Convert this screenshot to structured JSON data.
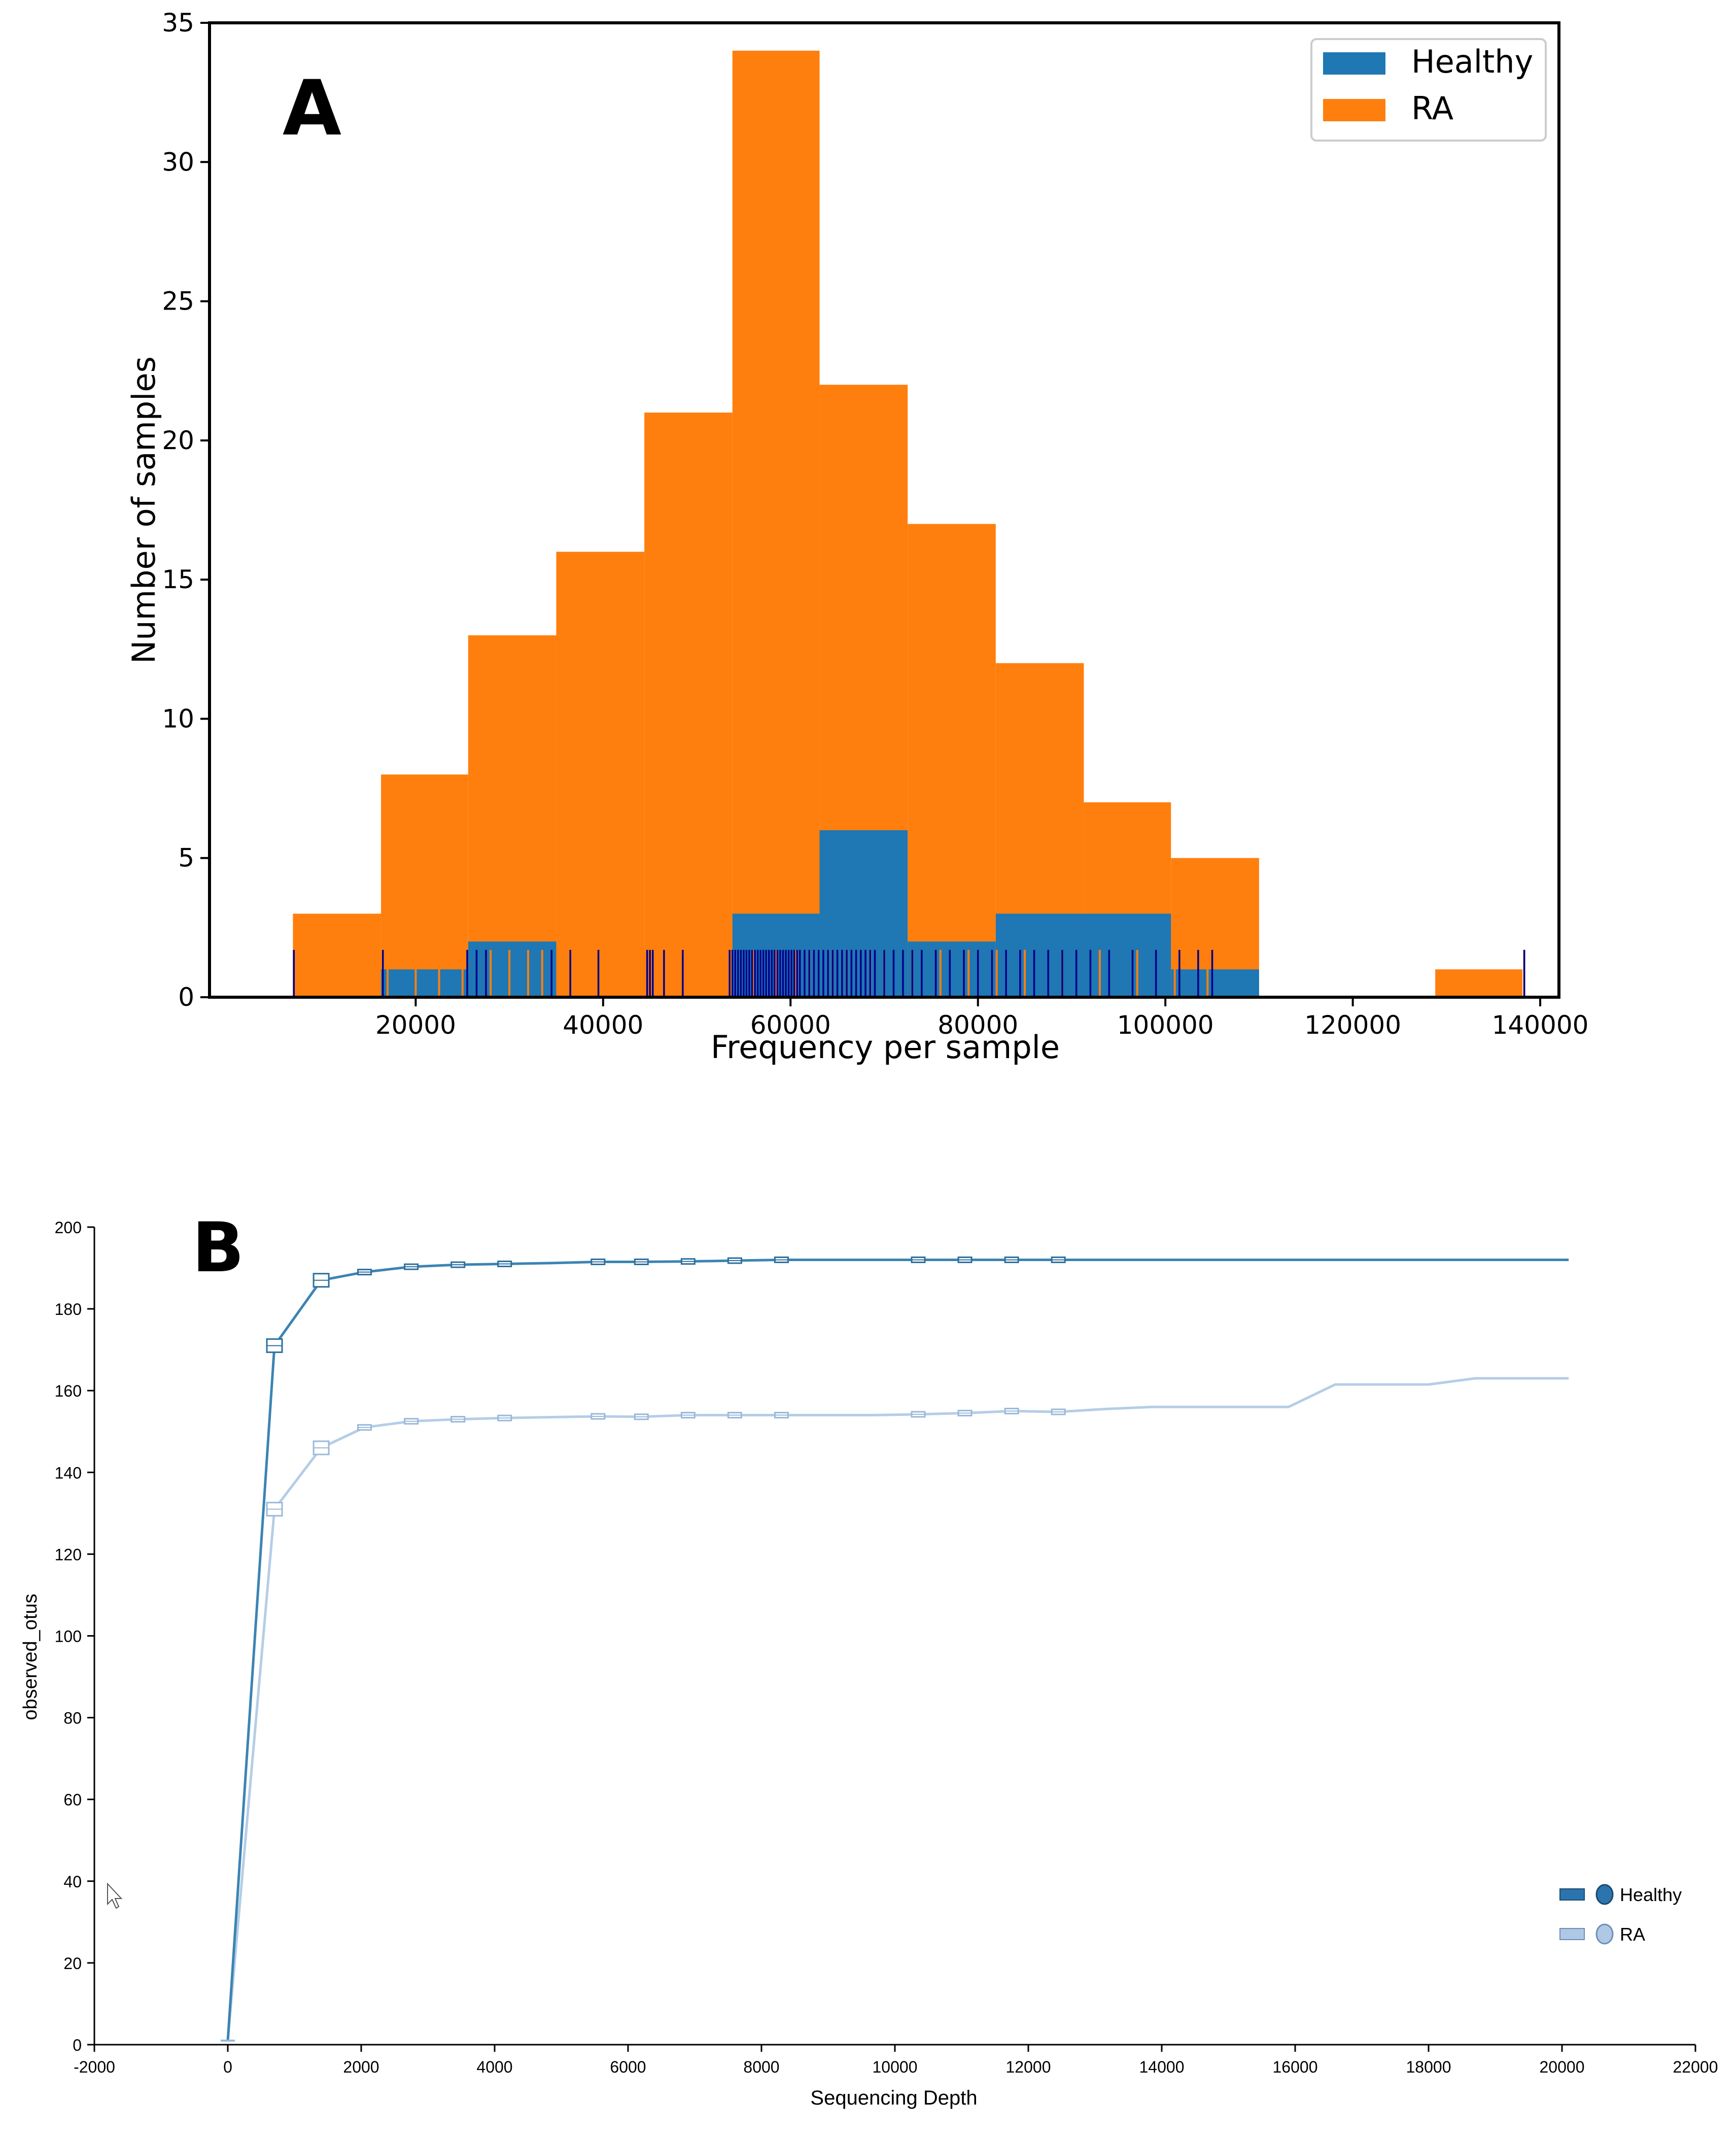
{
  "panel_a": {
    "letter": "A",
    "chart_data": {
      "type": "bar",
      "title": "",
      "xlabel": "Frequency per sample",
      "ylabel": "Number of samples",
      "xlim": [
        -2000,
        142000
      ],
      "ylim": [
        0,
        35
      ],
      "xticks": [
        20000,
        40000,
        60000,
        80000,
        100000,
        120000,
        140000
      ],
      "xtick_labels": [
        "20000",
        "40000",
        "60000",
        "80000",
        "100000",
        "120000",
        "140000"
      ],
      "yticks": [
        0,
        5,
        10,
        15,
        20,
        25,
        30,
        35
      ],
      "ytick_labels": [
        "0",
        "5",
        "10",
        "15",
        "20",
        "25",
        "30",
        "35"
      ],
      "bin_edges": [
        6900,
        16300,
        25600,
        35000,
        44400,
        53800,
        63100,
        72500,
        81900,
        91300,
        100600,
        110000,
        119400,
        128800,
        138100
      ],
      "series": [
        {
          "name": "RA",
          "color": "#ff7f0e",
          "values": [
            3,
            8,
            13,
            16,
            21,
            34,
            22,
            17,
            12,
            7,
            5,
            0,
            0,
            1
          ]
        },
        {
          "name": "Healthy",
          "color": "#1f77b4",
          "values": [
            0,
            1,
            2,
            0,
            0,
            3,
            6,
            2,
            3,
            3,
            1,
            0,
            0,
            0
          ]
        }
      ],
      "rug": {
        "orange_color": "#ff7f0e",
        "navy_color": "#00008b",
        "height_value": 1.7,
        "orange_x": [
          7000,
          12000,
          13000,
          17000,
          20000,
          22500,
          25000,
          28000,
          30000,
          32000,
          33500,
          35500,
          37000,
          38000,
          39000,
          40000,
          41500,
          43000,
          44500,
          46000,
          47500,
          49000,
          50500,
          52000,
          56000,
          58500,
          60500,
          62000,
          64500,
          66000,
          68500,
          70000,
          73000,
          76000,
          79000,
          82000,
          85000,
          89000,
          93000,
          97000,
          101000,
          104500,
          138300
        ],
        "navy_x": [
          7000,
          16500,
          25500,
          26500,
          27500,
          34500,
          36500,
          39500,
          44700,
          45000,
          45300,
          46500,
          48500,
          53500,
          53800,
          54100,
          54400,
          54700,
          55000,
          55300,
          55600,
          55900,
          56200,
          56500,
          56800,
          57100,
          57400,
          57700,
          58000,
          58300,
          58600,
          58900,
          59200,
          59500,
          59800,
          60100,
          60400,
          60700,
          61000,
          61500,
          62000,
          62500,
          63000,
          63500,
          64000,
          64500,
          65000,
          65500,
          66000,
          66500,
          67000,
          67500,
          68000,
          68500,
          69000,
          70000,
          71000,
          72000,
          73000,
          74000,
          75500,
          77000,
          78500,
          80000,
          81500,
          83000,
          84500,
          86000,
          87500,
          89000,
          90500,
          92000,
          94000,
          96500,
          99000,
          101500,
          103500,
          105000,
          138300
        ]
      },
      "legend": {
        "position": "top-right",
        "entries": [
          {
            "label": "Healthy",
            "color": "#1f77b4"
          },
          {
            "label": "RA",
            "color": "#ff7f0e"
          }
        ]
      }
    }
  },
  "panel_b": {
    "letter": "B",
    "chart_data": {
      "type": "line",
      "title": "",
      "xlabel": "Sequencing Depth",
      "ylabel": "observed_otus",
      "xlim": [
        -2000,
        22000
      ],
      "ylim": [
        0,
        200
      ],
      "xticks": [
        -2000,
        0,
        2000,
        4000,
        6000,
        8000,
        10000,
        12000,
        14000,
        16000,
        18000,
        20000,
        22000
      ],
      "xtick_labels": [
        "-2000",
        "0",
        "2000",
        "4000",
        "6000",
        "8000",
        "10000",
        "12000",
        "14000",
        "16000",
        "18000",
        "20000",
        "22000"
      ],
      "yticks": [
        0,
        20,
        40,
        60,
        80,
        100,
        120,
        140,
        160,
        180,
        200
      ],
      "ytick_labels": [
        "0",
        "20",
        "40",
        "60",
        "80",
        "100",
        "120",
        "140",
        "160",
        "180",
        "200"
      ],
      "series": [
        {
          "name": "Healthy",
          "color": "#3b84b3",
          "x": [
            0,
            700,
            1400,
            2050,
            2750,
            3450,
            4150,
            4850,
            5550,
            6200,
            6900,
            7600,
            8300,
            9000,
            9650,
            10350,
            11050,
            11750,
            12450,
            13150,
            13850,
            14550,
            15200,
            15900,
            16600,
            17300,
            18000,
            18700,
            19400,
            20100
          ],
          "y": [
            1,
            171,
            187,
            189,
            190.3,
            190.8,
            191,
            191.2,
            191.5,
            191.5,
            191.6,
            191.8,
            192,
            192,
            192,
            192,
            192,
            192,
            192,
            192,
            192,
            192,
            192,
            192,
            192,
            192,
            192,
            192,
            192,
            192
          ]
        },
        {
          "name": "RA",
          "color": "#b5cde6",
          "x": [
            0,
            700,
            1400,
            2050,
            2750,
            3450,
            4150,
            4850,
            5550,
            6200,
            6900,
            7600,
            8300,
            9000,
            9650,
            10350,
            11050,
            11750,
            12450,
            13150,
            13850,
            14550,
            15200,
            15900,
            16600,
            17300,
            18000,
            18700,
            19400,
            20100
          ],
          "y": [
            1,
            131,
            146,
            151,
            152.5,
            153,
            153.3,
            153.5,
            153.7,
            153.6,
            154,
            154,
            154,
            154,
            154,
            154.2,
            154.5,
            155,
            154.8,
            155.5,
            156,
            156,
            156,
            156,
            161.5,
            161.5,
            161.5,
            163,
            163,
            163
          ]
        }
      ],
      "boxes_at": [
        700,
        1400,
        2050,
        2750,
        3450,
        4150,
        5550,
        6200,
        6900,
        7600,
        8300,
        10350,
        11050,
        11750,
        12450
      ],
      "legend": {
        "position": "bottom-right",
        "entries": [
          {
            "label": "Healthy",
            "color": "#2c74ad"
          },
          {
            "label": "RA",
            "color": "#aec8e6"
          }
        ]
      }
    }
  }
}
